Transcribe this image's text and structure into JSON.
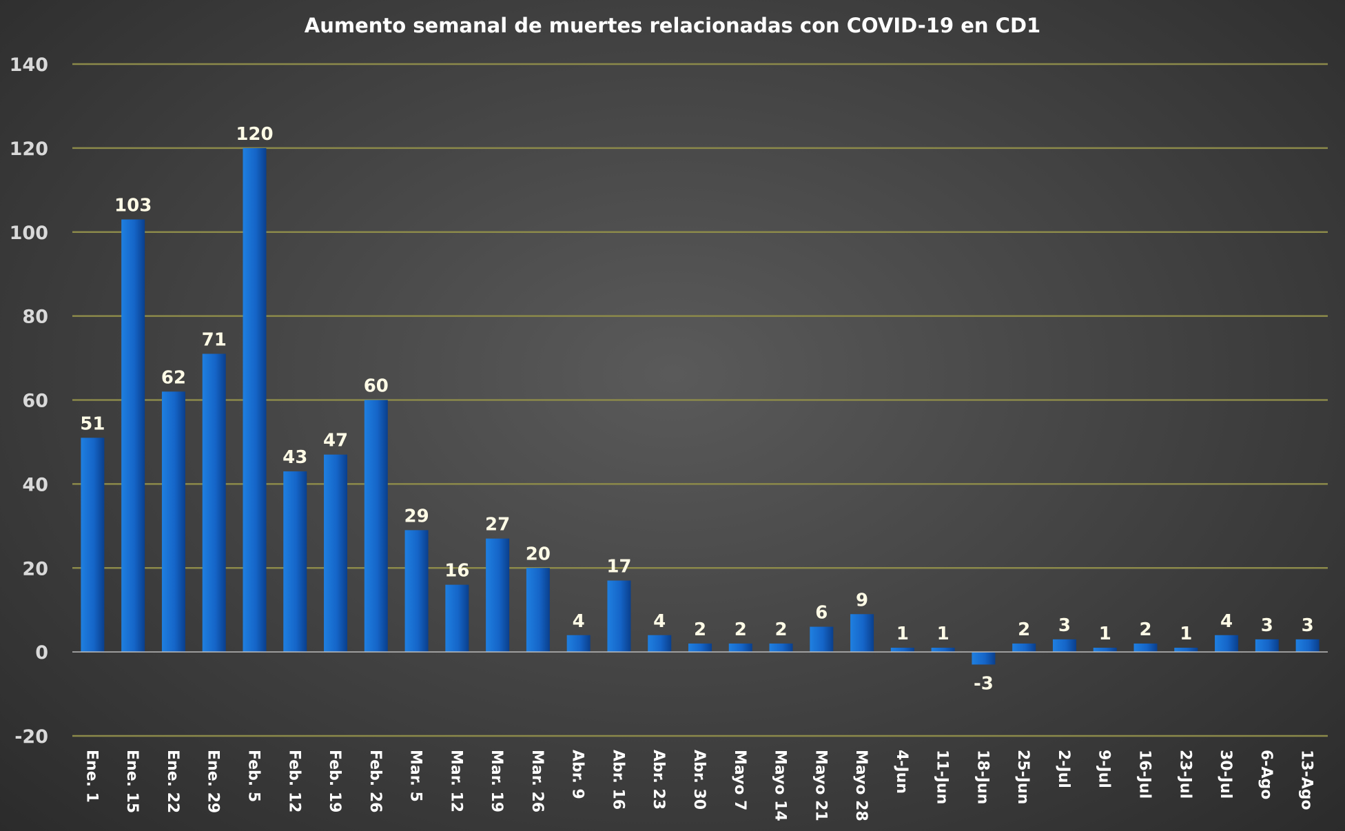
{
  "chart_data": {
    "type": "bar",
    "title": "Aumento semanal de muertes relacionadas con COVID-19 en CD1",
    "xlabel": "",
    "ylabel": "",
    "ylim": [
      -20,
      140
    ],
    "yticks": [
      -20,
      0,
      20,
      40,
      60,
      80,
      100,
      120,
      140
    ],
    "grid": true,
    "legend": "none",
    "categories": [
      "Ene. 1",
      "Ene. 15",
      "Ene. 22",
      "Ene. 29",
      "Feb. 5",
      "Feb. 12",
      "Feb. 19",
      "Feb. 26",
      "Mar. 5",
      "Mar. 12",
      "Mar. 19",
      "Mar. 26",
      "Abr. 9",
      "Abr. 16",
      "Abr. 23",
      "Abr. 30",
      "Mayo 7",
      "Mayo 14",
      "Mayo 21",
      "Mayo 28",
      "4-Jun",
      "11-Jun",
      "18-Jun",
      "25-Jun",
      "2-Jul",
      "9-Jul",
      "16-Jul",
      "23-Jul",
      "30-Jul",
      "6-Ago",
      "13-Ago"
    ],
    "values": [
      51,
      103,
      62,
      71,
      120,
      43,
      47,
      60,
      29,
      16,
      27,
      20,
      4,
      17,
      4,
      2,
      2,
      2,
      6,
      9,
      1,
      1,
      -3,
      2,
      3,
      1,
      2,
      1,
      4,
      3,
      3
    ],
    "colors": {
      "bar_light": "#1f7fe0",
      "bar_dark": "#0a3f8c",
      "gridline": "#8c8a4a",
      "axis_text": "#d9d9d9",
      "label_text": "#fffbe6"
    }
  }
}
